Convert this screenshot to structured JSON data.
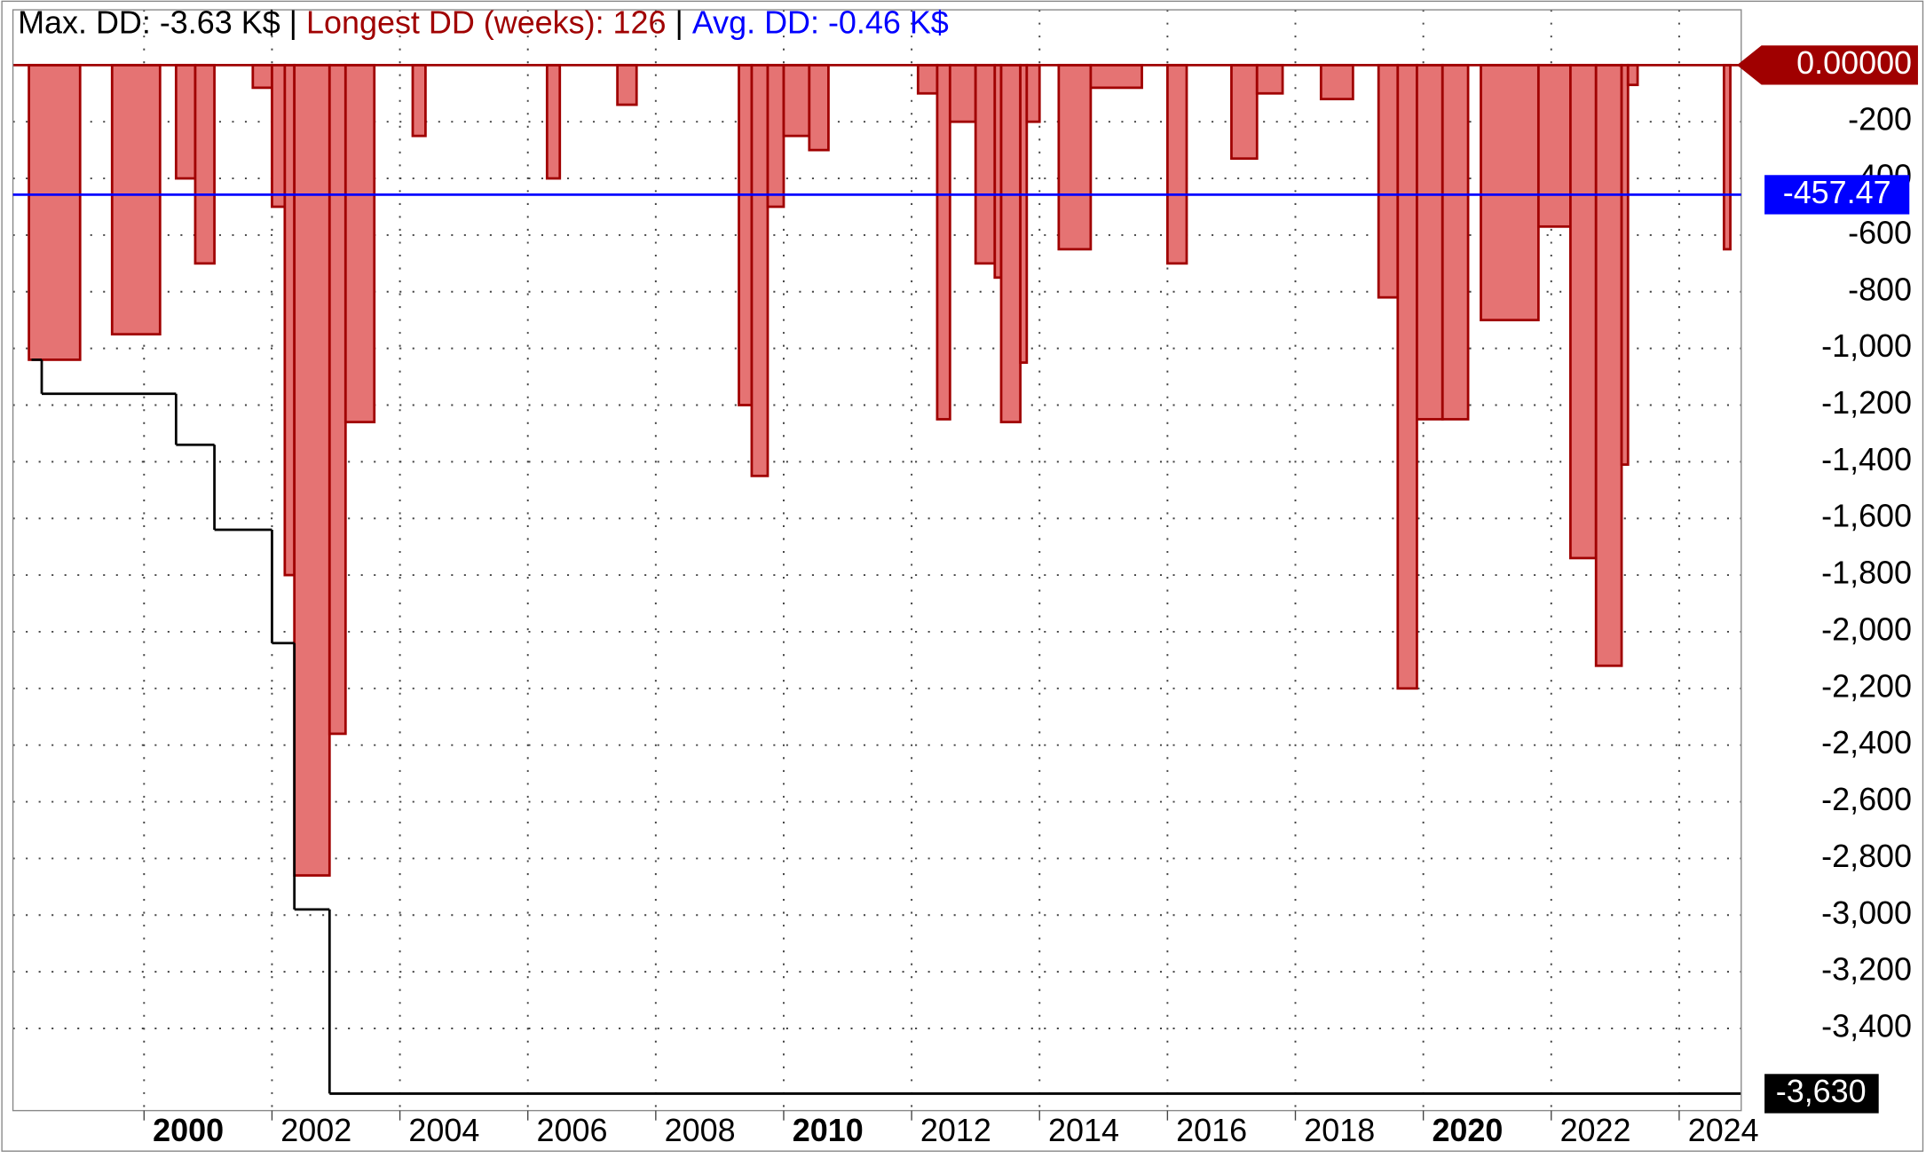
{
  "chart_data": {
    "type": "area",
    "annotations": [
      {
        "text": "Max. DD: -3.63 K$",
        "color": "#000000"
      },
      {
        "text": "|",
        "color": "#000000"
      },
      {
        "text": "Longest DD (weeks): 126",
        "color": "#a00000"
      },
      {
        "text": "|",
        "color": "#000000"
      },
      {
        "text": "Avg. DD: -0.46 K$",
        "color": "#0000ff"
      }
    ],
    "xlim": [
      1997.95,
      2024.97
    ],
    "xticks": [
      2000,
      2002,
      2004,
      2006,
      2008,
      2010,
      2012,
      2014,
      2016,
      2018,
      2020,
      2022,
      2024
    ],
    "ylim": [
      -3690,
      195
    ],
    "yticks": [
      {
        "value": -200,
        "label": "-200"
      },
      {
        "value": -400,
        "label": "-400"
      },
      {
        "value": -600,
        "label": "-600"
      },
      {
        "value": -800,
        "label": "-800"
      },
      {
        "value": -1000,
        "label": "-1,000"
      },
      {
        "value": -1200,
        "label": "-1,200"
      },
      {
        "value": -1400,
        "label": "-1,400"
      },
      {
        "value": -1600,
        "label": "-1,600"
      },
      {
        "value": -1800,
        "label": "-1,800"
      },
      {
        "value": -2000,
        "label": "-2,000"
      },
      {
        "value": -2200,
        "label": "-2,200"
      },
      {
        "value": -2400,
        "label": "-2,400"
      },
      {
        "value": -2600,
        "label": "-2,600"
      },
      {
        "value": -2800,
        "label": "-2,800"
      },
      {
        "value": -3000,
        "label": "-3,000"
      },
      {
        "value": -3200,
        "label": "-3,200"
      },
      {
        "value": -3400,
        "label": "-3,400"
      }
    ],
    "grid": true,
    "series": [
      {
        "name": "Drawdown",
        "color": "#e57373",
        "stroke": "#a00000",
        "step": true,
        "x": [
          1998.2,
          1999.0,
          1999.5,
          2000.25,
          2000.5,
          2000.8,
          2001.1,
          2001.7,
          2002.0,
          2002.2,
          2002.35,
          2002.9,
          2003.15,
          2003.6,
          2004.2,
          2004.4,
          2006.3,
          2006.5,
          2007.4,
          2007.7,
          2009.3,
          2009.5,
          2009.75,
          2010.0,
          2010.4,
          2010.7,
          2012.1,
          2012.4,
          2012.6,
          2013.0,
          2013.3,
          2013.4,
          2013.7,
          2013.8,
          2014.0,
          2014.3,
          2014.8,
          2015.6,
          2016.0,
          2016.3,
          2017.0,
          2017.4,
          2017.8,
          2018.4,
          2018.9,
          2019.3,
          2019.6,
          2019.9,
          2020.3,
          2020.7,
          2020.9,
          2021.8,
          2022.3,
          2022.7,
          2023.1,
          2023.2,
          2023.35,
          2024.7,
          2024.8
        ],
        "values": [
          -1040,
          0,
          -950,
          0,
          -400,
          -700,
          0,
          -80,
          -500,
          -1800,
          -2860,
          -2360,
          -1260,
          0,
          -250,
          0,
          -400,
          0,
          -140,
          0,
          -1200,
          -1450,
          -500,
          -250,
          -300,
          0,
          -100,
          -1250,
          -200,
          -700,
          -750,
          -1260,
          -1050,
          -200,
          0,
          -650,
          -80,
          0,
          -700,
          0,
          -330,
          -100,
          0,
          -120,
          0,
          -820,
          -2200,
          -1250,
          -1250,
          0,
          -900,
          -570,
          -1740,
          -2120,
          -1410,
          -70,
          0,
          -650,
          0
        ]
      },
      {
        "name": "Max drawdown",
        "color": "#000000",
        "step": true,
        "x": [
          1998.24,
          1998.4,
          2000.5,
          2001.1,
          2002.0,
          2002.35,
          2002.9
        ],
        "values": [
          -1040,
          -1160,
          -1340,
          -1640,
          -2040,
          -2980,
          -3630
        ]
      }
    ],
    "tags": [
      {
        "value": 0,
        "label": "0.00000",
        "color": "#a00000",
        "line": false
      },
      {
        "value": -457.47,
        "label": "-457.47",
        "color": "#0000ff",
        "line": true
      },
      {
        "value": -3630,
        "label": "-3,630",
        "color": "#000000",
        "line": false
      }
    ]
  }
}
